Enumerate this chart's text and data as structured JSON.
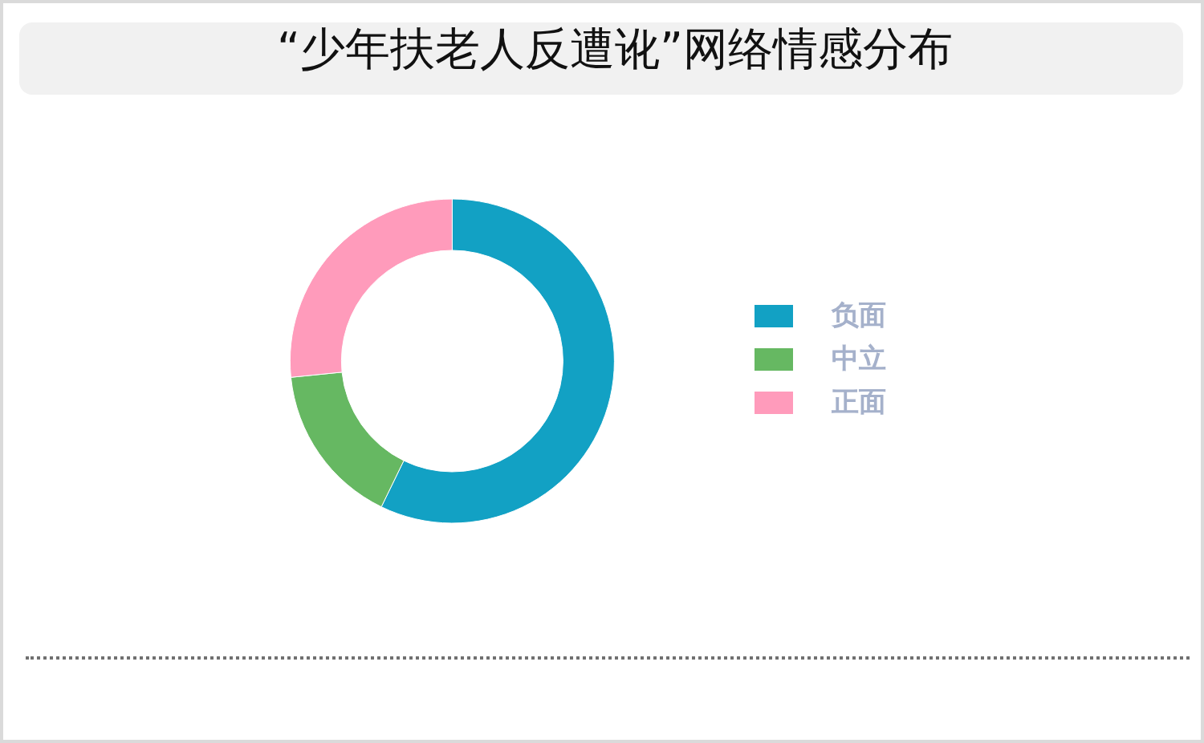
{
  "chart_data": {
    "type": "donut",
    "title": "“少年扶老人反遭讹”网络情感分布",
    "categories": [
      "负面",
      "中立",
      "正面"
    ],
    "values": [
      57.2,
      16.2,
      26.6
    ],
    "colors": [
      "#12a1c4",
      "#66b862",
      "#ff9bbb"
    ],
    "legend": "right"
  }
}
